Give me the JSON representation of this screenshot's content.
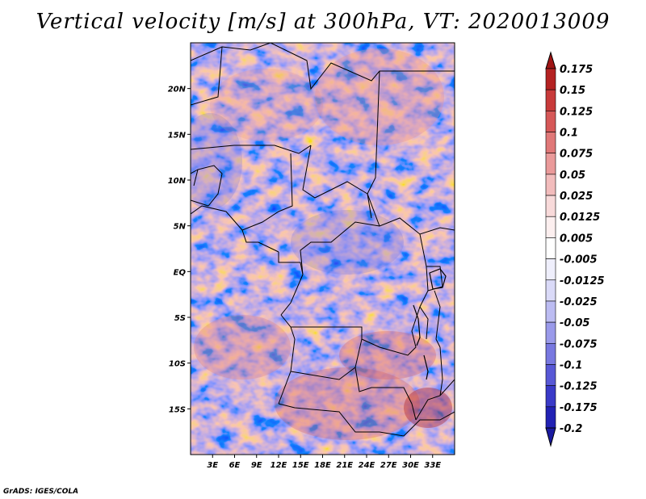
{
  "title": "Vertical velocity [m/s] at 300hPa, VT: 2020013009",
  "credit": "GrADS: IGES/COLA",
  "map": {
    "lon_range": [
      0,
      36
    ],
    "lat_range": [
      -20,
      25
    ],
    "lat_ticks": [
      {
        "value": 20,
        "label": "20N"
      },
      {
        "value": 15,
        "label": "15N"
      },
      {
        "value": 10,
        "label": "10N"
      },
      {
        "value": 5,
        "label": "5N"
      },
      {
        "value": 0,
        "label": "EQ"
      },
      {
        "value": -5,
        "label": "5S"
      },
      {
        "value": -10,
        "label": "10S"
      },
      {
        "value": -15,
        "label": "15S"
      }
    ],
    "lon_ticks": [
      {
        "value": 3,
        "label": "3E"
      },
      {
        "value": 6,
        "label": "6E"
      },
      {
        "value": 9,
        "label": "9E"
      },
      {
        "value": 12,
        "label": "12E"
      },
      {
        "value": 15,
        "label": "15E"
      },
      {
        "value": 18,
        "label": "18E"
      },
      {
        "value": 21,
        "label": "21E"
      },
      {
        "value": 24,
        "label": "24E"
      },
      {
        "value": 27,
        "label": "27E"
      },
      {
        "value": 30,
        "label": "30E"
      },
      {
        "value": 33,
        "label": "33E"
      }
    ]
  },
  "colorbar": {
    "levels": [
      "0.175",
      "0.15",
      "0.125",
      "0.1",
      "0.075",
      "0.05",
      "0.025",
      "0.0125",
      "0.005",
      "-0.005",
      "-0.0125",
      "-0.025",
      "-0.05",
      "-0.075",
      "-0.1",
      "-0.125",
      "-0.175",
      "-0.2"
    ],
    "colors": [
      "#a01515",
      "#b42222",
      "#c83a3a",
      "#d65858",
      "#e07878",
      "#ea9a9a",
      "#f2bcbc",
      "#f8dada",
      "#fcefef",
      "#ffffff",
      "#efeffc",
      "#dadaf8",
      "#bcbcf2",
      "#9a9aea",
      "#7878e0",
      "#5858d6",
      "#3a3ac8",
      "#2222b4",
      "#1a1aa0"
    ]
  }
}
